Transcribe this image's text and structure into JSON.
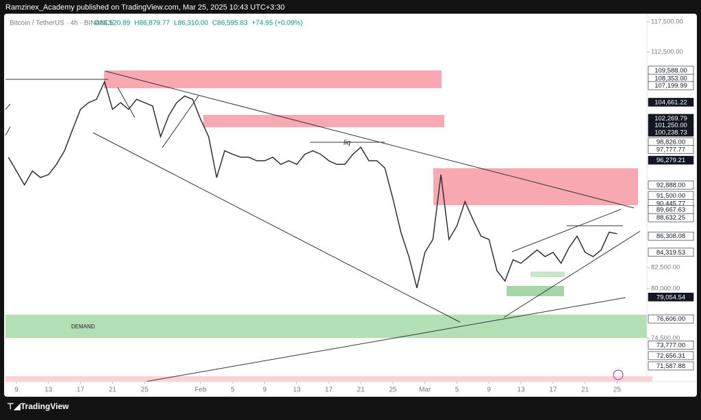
{
  "header": {
    "author_line": "Ramzinex_Academy published on TradingView.com, Mar 25, 2025 10:43 UTC+3:30"
  },
  "footer": {
    "brand": "TradingView"
  },
  "chart_data": {
    "type": "line",
    "symbol": "Bitcoin / TetherUS · 4h · BINANCE",
    "legend_values": [
      "O86,520.89",
      "H86,879.77",
      "L86,310.00",
      "C86,595.83",
      "+74.95 (+0.09%)"
    ],
    "annotations": {
      "liq": "liq",
      "demand": "DEMAND"
    },
    "log_scale": true,
    "color": "#2a2e39",
    "x": [
      8,
      9,
      10,
      11,
      12,
      13,
      14,
      15,
      16,
      17,
      18,
      19,
      20,
      21,
      22,
      23,
      24,
      25,
      26,
      27,
      28,
      29,
      30,
      31,
      32,
      33,
      34,
      35,
      36,
      37,
      38,
      39,
      40,
      41,
      42,
      43,
      44,
      45,
      46,
      47,
      48,
      49,
      50,
      51,
      52,
      53,
      54,
      55,
      56,
      57,
      58,
      59,
      60,
      61,
      62,
      63,
      64,
      65,
      66,
      67,
      68,
      69,
      70,
      71,
      72,
      73,
      74,
      75,
      76,
      77,
      78,
      79,
      80,
      81,
      82,
      83,
      84
    ],
    "values": [
      96700,
      94800,
      92900,
      94800,
      93900,
      94300,
      95700,
      97600,
      100600,
      103600,
      104600,
      105100,
      107800,
      103600,
      104600,
      103600,
      105100,
      104600,
      104100,
      99600,
      102600,
      104600,
      105600,
      105100,
      102100,
      99600,
      93900,
      97600,
      97100,
      96700,
      96700,
      96200,
      96200,
      96700,
      95700,
      96200,
      95700,
      97100,
      97600,
      97100,
      96200,
      95700,
      95700,
      97100,
      98100,
      96200,
      96200,
      95200,
      91100,
      86800,
      83800,
      80100,
      84300,
      85900,
      94300,
      85900,
      87600,
      90700,
      88400,
      86300,
      85900,
      82100,
      80900,
      83400,
      83000,
      83800,
      84600,
      83800,
      84300,
      83000,
      84900,
      86300,
      84300,
      83800,
      84600,
      86800,
      86595.83
    ],
    "xlim": [
      7.63,
      87.72
    ],
    "ylim": [
      69980,
      118900
    ],
    "xticks": [
      9,
      13,
      17,
      21,
      25,
      {
        "value": 32,
        "label": "Feb"
      },
      {
        "value": 36,
        "label": "5"
      },
      {
        "value": 40,
        "label": "9"
      },
      {
        "value": 44,
        "label": "13"
      },
      {
        "value": 48,
        "label": "17"
      },
      {
        "value": 52,
        "label": "21"
      },
      {
        "value": 56,
        "label": "25"
      },
      {
        "value": 60,
        "label": "Mar"
      },
      {
        "value": 64,
        "label": "5"
      },
      {
        "value": 68,
        "label": "9"
      },
      {
        "value": 72,
        "label": "13"
      },
      {
        "value": 76,
        "label": "17"
      },
      {
        "value": 80,
        "label": "21"
      },
      {
        "value": 84,
        "label": "25"
      }
    ],
    "yticks": [
      {
        "value": 117500,
        "label": "117,500.00"
      },
      {
        "value": 112500,
        "label": "112,500.00"
      },
      {
        "value": 82500,
        "label": "82,500.00"
      },
      {
        "value": 80000,
        "label": "80,000.00"
      },
      {
        "value": 74500,
        "label": "74,500.00"
      }
    ],
    "price_labels": [
      {
        "value": 109588,
        "label": "109,588.00",
        "style": "light"
      },
      {
        "value": 108353,
        "label": "108,353.00",
        "style": "light"
      },
      {
        "value": 107199.99,
        "label": "107,199.99",
        "style": "light"
      },
      {
        "value": 104661.22,
        "label": "104,661.22",
        "style": "dark"
      },
      {
        "value": 102269.79,
        "label": "102,269.79",
        "style": "dark"
      },
      {
        "value": 101250,
        "label": "101,250.00",
        "style": "dark"
      },
      {
        "value": 100238.73,
        "label": "100,238.73",
        "style": "dark"
      },
      {
        "value": 98826,
        "label": "98,826.00",
        "style": "light"
      },
      {
        "value": 97777.77,
        "label": "97,777.77",
        "style": "light"
      },
      {
        "value": 96279.21,
        "label": "96,279.21",
        "style": "dark"
      },
      {
        "value": 92888,
        "label": "92,888.00",
        "style": "light"
      },
      {
        "value": 91500,
        "label": "91,500.00",
        "style": "light"
      },
      {
        "value": 90445.77,
        "label": "90,445.77",
        "style": "light"
      },
      {
        "value": 89667.63,
        "label": "89,667.63",
        "style": "light"
      },
      {
        "value": 88632.25,
        "label": "88,632.25",
        "style": "light"
      },
      {
        "value": 86308.08,
        "label": "86,308.08",
        "style": "light"
      },
      {
        "value": 84319.53,
        "label": "84,319.53",
        "style": "light"
      },
      {
        "value": 79054.54,
        "label": "79,054.54",
        "style": "dark"
      },
      {
        "value": 76606,
        "label": "76,606.00",
        "style": "light"
      },
      {
        "value": 73777,
        "label": "73,777.00",
        "style": "light"
      },
      {
        "value": 72656.31,
        "label": "72,656.31",
        "style": "light"
      },
      {
        "value": 71587.88,
        "label": "71,587.88",
        "style": "light"
      }
    ]
  }
}
